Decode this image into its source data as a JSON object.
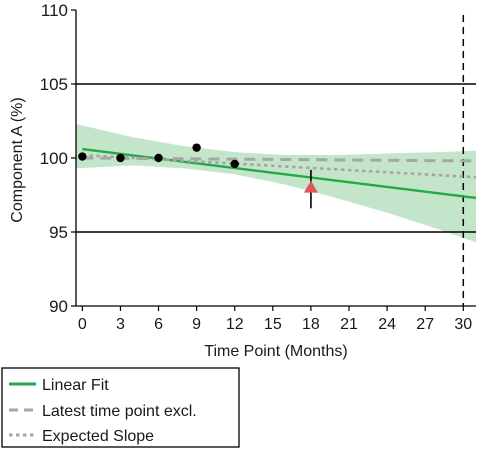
{
  "chart_data": {
    "type": "scatter",
    "title": "",
    "xlabel": "Time Point (Months)",
    "ylabel": "Component A (%)",
    "xlim": [
      -0.5,
      31
    ],
    "ylim": [
      90,
      110
    ],
    "xticks": [
      0,
      3,
      6,
      9,
      12,
      15,
      18,
      21,
      24,
      27,
      30
    ],
    "yticks": [
      90,
      95,
      100,
      105,
      110
    ],
    "grid": false,
    "spec_limits": [
      95,
      105
    ],
    "shelf_life_marker_x": 30,
    "legend_placement": "bottom",
    "colors": {
      "linear_fit": "#22aa44",
      "confidence_band": "#b8e0bf",
      "latest_excluded": "#a6a6a6",
      "expected_slope": "#a6a6a6",
      "points": "#000000",
      "outlier": "#e05555"
    },
    "points": {
      "x": [
        0,
        3,
        6,
        9,
        12
      ],
      "y": [
        100.1,
        100.0,
        100.0,
        100.7,
        99.6
      ]
    },
    "outlier_point": {
      "x": 18,
      "y": 98.0,
      "error_low": 96.6,
      "error_high": 99.2
    },
    "series": [
      {
        "name": "Linear Fit",
        "x": [
          0,
          31
        ],
        "y": [
          100.6,
          97.3
        ],
        "style": "solid"
      },
      {
        "name": "Latest time point excl.",
        "x": [
          0,
          31
        ],
        "y": [
          100.0,
          99.8
        ],
        "style": "dashed"
      },
      {
        "name": "Expected Slope",
        "x": [
          0,
          31
        ],
        "y": [
          100.2,
          98.7
        ],
        "style": "dotted"
      }
    ],
    "confidence_band": {
      "x": [
        -0.5,
        4,
        8,
        12,
        16,
        20,
        24,
        28,
        31
      ],
      "upper": [
        102.3,
        101.4,
        100.8,
        100.4,
        100.2,
        100.2,
        100.3,
        100.4,
        100.5
      ],
      "lower": [
        99.3,
        99.5,
        99.3,
        98.9,
        98.2,
        97.3,
        96.3,
        95.2,
        94.3
      ]
    }
  }
}
